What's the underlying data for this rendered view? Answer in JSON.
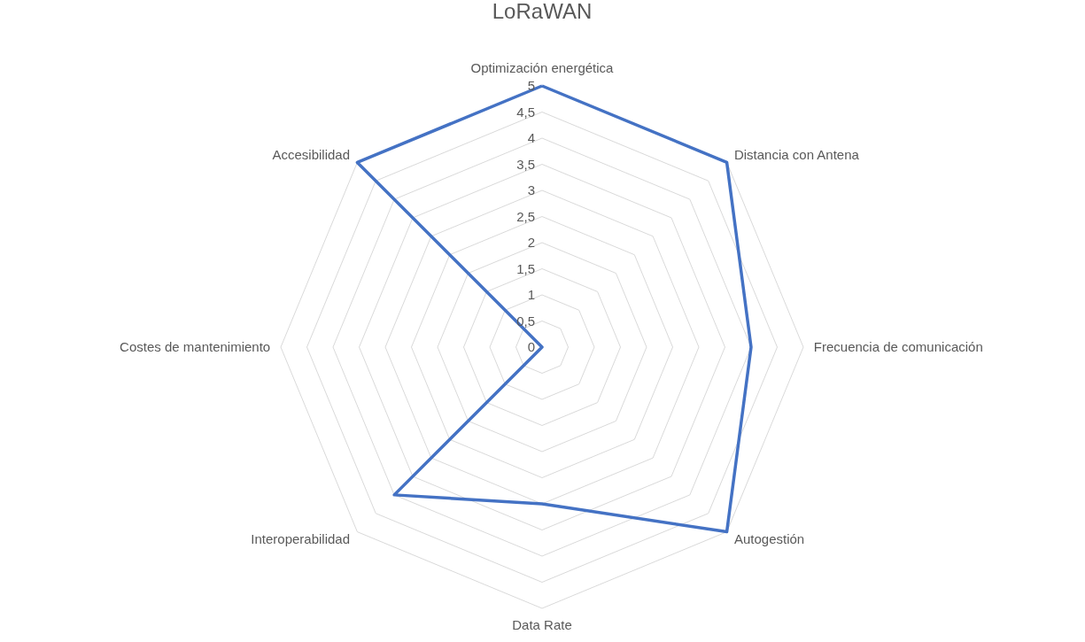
{
  "chart_data": {
    "type": "radar",
    "title": "LoRaWAN",
    "categories": [
      "Optimización energética",
      "Distancia con Antena",
      "Frecuencia de comunicación",
      "Autogestión",
      "Data Rate",
      "Interoperabilidad",
      "Costes de mantenimiento",
      "Accesibilidad"
    ],
    "series": [
      {
        "color": "#4472c4",
        "values": [
          5,
          5,
          4,
          5,
          3,
          4,
          0,
          5
        ]
      }
    ],
    "ylim": [
      0,
      5
    ],
    "yticks": [
      0,
      {
        "value": 0.5,
        "label": "0,5"
      },
      1,
      {
        "value": 1.5,
        "label": "1,5"
      },
      2,
      {
        "value": 2.5,
        "label": "2,5"
      },
      3,
      {
        "value": 3.5,
        "label": "3,5"
      },
      4,
      {
        "value": 4.5,
        "label": "4,5"
      },
      5
    ],
    "grid": true
  }
}
